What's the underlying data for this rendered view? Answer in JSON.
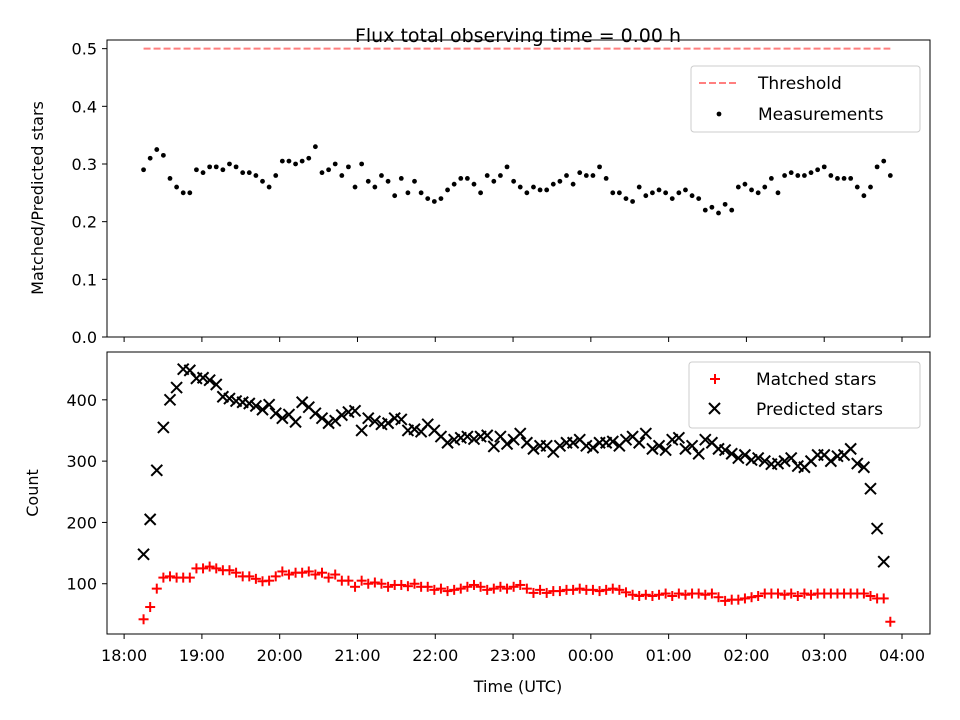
{
  "chart_data": [
    {
      "type": "scatter",
      "title": "Flux total observing time = 0.00 h",
      "xlabel": "",
      "ylabel": "Matched/Predicted stars",
      "ylim": [
        0,
        0.515
      ],
      "yticks": [
        "0.0",
        "0.1",
        "0.2",
        "0.3",
        "0.4",
        "0.5"
      ],
      "xlim_hours": [
        17.78,
        28.36
      ],
      "legend_position": "top-right",
      "threshold": {
        "name": "Threshold",
        "value": 0.5,
        "x_start_hours": 18.25,
        "x_end_hours": 27.85,
        "color": "#ff7f7f"
      },
      "series": [
        {
          "name": "Measurements",
          "color": "#000000",
          "x_start_hours": 18.25,
          "x_end_hours": 27.85,
          "values": [
            0.29,
            0.31,
            0.325,
            0.315,
            0.275,
            0.26,
            0.25,
            0.25,
            0.29,
            0.285,
            0.295,
            0.295,
            0.29,
            0.3,
            0.295,
            0.285,
            0.285,
            0.28,
            0.27,
            0.26,
            0.28,
            0.305,
            0.305,
            0.3,
            0.305,
            0.31,
            0.33,
            0.285,
            0.29,
            0.3,
            0.28,
            0.295,
            0.26,
            0.3,
            0.27,
            0.26,
            0.28,
            0.27,
            0.245,
            0.275,
            0.25,
            0.27,
            0.25,
            0.24,
            0.235,
            0.24,
            0.255,
            0.265,
            0.275,
            0.275,
            0.265,
            0.25,
            0.28,
            0.27,
            0.28,
            0.295,
            0.27,
            0.26,
            0.25,
            0.26,
            0.255,
            0.255,
            0.265,
            0.27,
            0.28,
            0.265,
            0.285,
            0.28,
            0.28,
            0.295,
            0.275,
            0.25,
            0.25,
            0.24,
            0.235,
            0.26,
            0.245,
            0.25,
            0.255,
            0.25,
            0.24,
            0.25,
            0.255,
            0.245,
            0.24,
            0.22,
            0.225,
            0.215,
            0.23,
            0.22,
            0.26,
            0.265,
            0.255,
            0.25,
            0.26,
            0.275,
            0.25,
            0.28,
            0.285,
            0.28,
            0.28,
            0.285,
            0.29,
            0.295,
            0.28,
            0.275,
            0.275,
            0.275,
            0.26,
            0.245,
            0.26,
            0.295,
            0.305,
            0.28
          ]
        }
      ]
    },
    {
      "type": "scatter",
      "title": "",
      "xlabel": "Time (UTC)",
      "ylabel": "Count",
      "ylim": [
        18,
        478
      ],
      "yticks": [
        "100",
        "200",
        "300",
        "400"
      ],
      "xlim_hours": [
        17.78,
        28.36
      ],
      "xticks": [
        "18:00",
        "19:00",
        "20:00",
        "21:00",
        "22:00",
        "23:00",
        "00:00",
        "01:00",
        "02:00",
        "03:00",
        "04:00"
      ],
      "legend_position": "top-right",
      "series": [
        {
          "name": "Matched stars",
          "color": "#ff0000",
          "marker": "+",
          "x_start_hours": 18.25,
          "x_end_hours": 27.85,
          "values": [
            42,
            62,
            92,
            110,
            112,
            110,
            110,
            110,
            125,
            125,
            128,
            125,
            122,
            122,
            118,
            112,
            112,
            108,
            104,
            105,
            112,
            120,
            115,
            118,
            118,
            120,
            115,
            118,
            110,
            115,
            105,
            105,
            95,
            105,
            100,
            102,
            100,
            95,
            98,
            98,
            96,
            100,
            95,
            95,
            90,
            92,
            88,
            90,
            92,
            95,
            98,
            95,
            90,
            92,
            95,
            92,
            95,
            98,
            92,
            85,
            90,
            85,
            88,
            88,
            90,
            90,
            92,
            90,
            90,
            88,
            90,
            92,
            90,
            86,
            82,
            80,
            82,
            80,
            82,
            84,
            80,
            84,
            82,
            84,
            84,
            82,
            84,
            78,
            72,
            74,
            74,
            76,
            78,
            80,
            84,
            84,
            84,
            82,
            84,
            80,
            84,
            82,
            84,
            84,
            84,
            84,
            84,
            84,
            84,
            84,
            80,
            76,
            76,
            38
          ]
        },
        {
          "name": "Predicted stars",
          "color": "#000000",
          "marker": "x",
          "x_start_hours": 18.25,
          "x_end_hours": 27.85,
          "values": [
            148,
            205,
            285,
            355,
            400,
            420,
            450,
            448,
            435,
            436,
            432,
            425,
            405,
            402,
            398,
            396,
            394,
            390,
            384,
            392,
            378,
            370,
            376,
            364,
            396,
            388,
            378,
            370,
            362,
            366,
            375,
            380,
            382,
            350,
            370,
            365,
            360,
            362,
            370,
            368,
            350,
            352,
            348,
            360,
            350,
            340,
            330,
            335,
            338,
            340,
            336,
            340,
            342,
            324,
            340,
            328,
            335,
            345,
            330,
            320,
            325,
            325,
            315,
            325,
            330,
            330,
            335,
            325,
            322,
            330,
            330,
            332,
            325,
            335,
            340,
            330,
            345,
            320,
            325,
            318,
            335,
            338,
            320,
            325,
            312,
            335,
            330,
            320,
            318,
            312,
            305,
            310,
            302,
            305,
            300,
            295,
            296,
            300,
            305,
            292,
            290,
            300,
            310,
            310,
            300,
            308,
            310,
            320,
            296,
            290,
            255,
            190,
            136,
            0
          ]
        }
      ]
    }
  ]
}
